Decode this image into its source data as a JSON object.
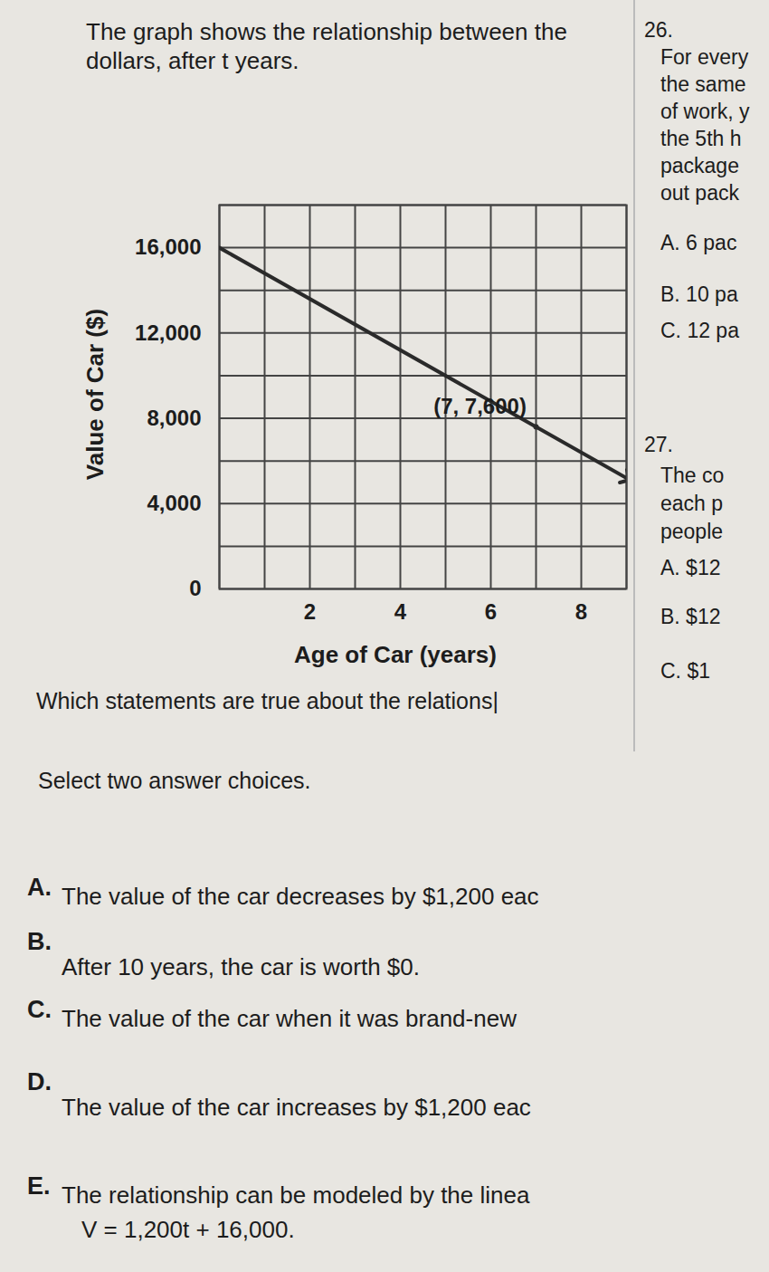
{
  "question": {
    "intro": [
      "The graph shows the relationship between the",
      "dollars, after t years."
    ],
    "prompt": "Which statements are true about the relations|",
    "instruction": "Select two answer choices.",
    "choices": [
      {
        "label": "A.",
        "text": [
          "The value of the car decreases by $1,200 eac"
        ]
      },
      {
        "label": "B.",
        "text": [
          "After 10 years, the car is worth $0."
        ]
      },
      {
        "label": "C.",
        "text": [
          "The value of the car when it was brand-new"
        ]
      },
      {
        "label": "D.",
        "text": [
          "The value of the car increases by $1,200 eac"
        ]
      },
      {
        "label": "E.",
        "text": [
          "The relationship can be modeled by the linea",
          "V = 1,200t + 16,000."
        ]
      }
    ]
  },
  "side_column": [
    "26.",
    "For every",
    "the same",
    "of work, y",
    "the 5th h",
    "package",
    "out pack",
    "A. 6 pac",
    "B. 10 pa",
    "C. 12 pa",
    "27.",
    "The co",
    "each p",
    "people",
    "A. $12",
    "B. $12",
    "C. $1"
  ],
  "chart_data": {
    "type": "line",
    "x_label": "Age of Car (years)",
    "y_label": "Value of Car ($)",
    "x": [
      0,
      7,
      9
    ],
    "series": [
      {
        "name": "Value of Car",
        "color": "#2a2a2a",
        "values": [
          16000,
          7600,
          5200
        ],
        "marker": "arrow"
      }
    ],
    "xlim": [
      0,
      9
    ],
    "ylim": [
      0,
      18000
    ],
    "xticks": [
      2,
      4,
      6,
      8
    ],
    "yticks": [
      0,
      {
        "value": 4000,
        "label": "4,000"
      },
      {
        "value": 8000,
        "label": "8,000"
      },
      {
        "value": 12000,
        "label": "12,000"
      },
      {
        "value": 16000,
        "label": "16,000"
      }
    ],
    "grid": true,
    "x_gridlines": [
      0,
      1,
      2,
      3,
      4,
      5,
      6,
      7,
      8,
      9
    ],
    "y_gridlines": [
      0,
      2000,
      4000,
      6000,
      8000,
      10000,
      12000,
      14000,
      16000,
      18000
    ],
    "annotations": [
      {
        "x": 7,
        "y": 7600,
        "text": "(7, 7,600)"
      }
    ]
  }
}
